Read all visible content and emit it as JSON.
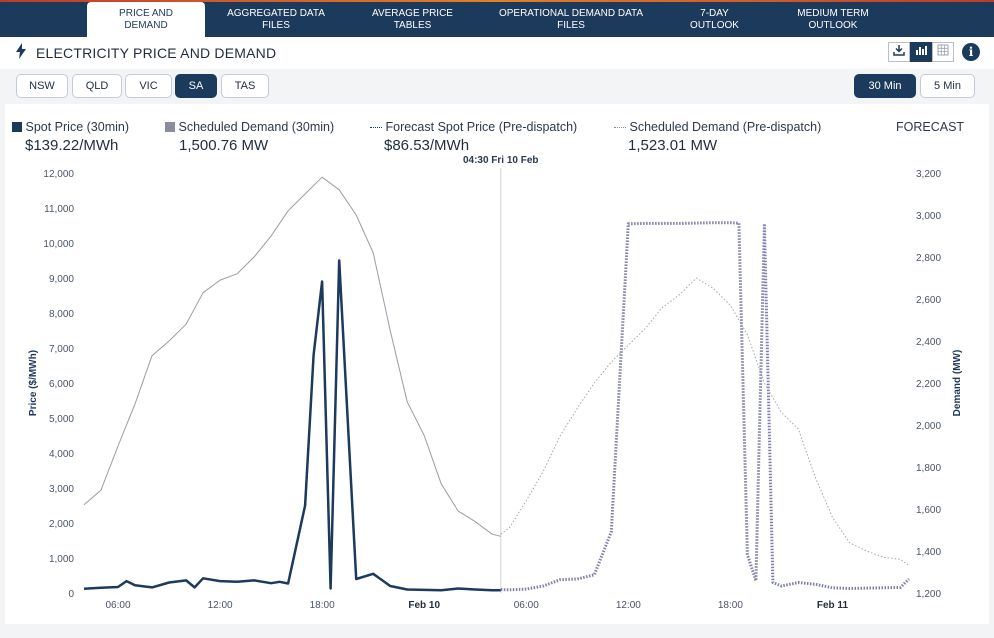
{
  "tabs": [
    {
      "label1": "PRICE AND",
      "label2": "DEMAND"
    },
    {
      "label1": "AGGREGATED DATA",
      "label2": "FILES"
    },
    {
      "label1": "AVERAGE PRICE",
      "label2": "TABLES"
    },
    {
      "label1": "OPERATIONAL DEMAND DATA",
      "label2": "FILES"
    },
    {
      "label1": "7-DAY",
      "label2": "OUTLOOK"
    },
    {
      "label1": "MEDIUM TERM",
      "label2": "OUTLOOK"
    }
  ],
  "header": {
    "title": "ELECTRICITY PRICE AND DEMAND",
    "info_label": "i"
  },
  "regions": [
    "NSW",
    "QLD",
    "VIC",
    "SA",
    "TAS"
  ],
  "selected_region": "SA",
  "intervals": [
    "30 Min",
    "5 Min"
  ],
  "selected_interval": "30 Min",
  "legend": {
    "spot_price": {
      "label": "Spot Price (30min)",
      "value": "$139.22/MWh",
      "color": "#1c3a5c"
    },
    "scheduled_demand": {
      "label": "Scheduled Demand (30min)",
      "value": "1,500.76 MW",
      "color": "#8a8d9a"
    },
    "forecast_price": {
      "label": "Forecast Spot Price (Pre-dispatch)",
      "value": "$86.53/MWh"
    },
    "forecast_demand": {
      "label": "Scheduled Demand (Pre-dispatch)",
      "value": "1,523.01 MW"
    },
    "forecast_label": "FORECAST"
  },
  "chart_data": {
    "type": "line",
    "marker_label": "04:30 Fri 10 Feb",
    "x_ticks": [
      "06:00",
      "12:00",
      "18:00",
      "Feb 10",
      "06:00",
      "12:00",
      "18:00",
      "Feb 11"
    ],
    "ylabel_left": "Price ($/MWh)",
    "ylabel_right": "Demand (MW)",
    "y_left_ticks": [
      "0",
      "1,000",
      "2,000",
      "3,000",
      "4,000",
      "5,000",
      "6,000",
      "7,000",
      "8,000",
      "9,000",
      "10,000",
      "11,000",
      "12,000"
    ],
    "y_right_ticks": [
      "1,200",
      "1,400",
      "1,600",
      "1,800",
      "2,000",
      "2,200",
      "2,400",
      "2,600",
      "2,800",
      "3,000",
      "3,200"
    ],
    "ylim_left": [
      0,
      12000
    ],
    "ylim_right": [
      1200,
      3200
    ],
    "x_hours_note": "hours relative to 00:00 Feb 9 (x axis spans 04:00 Feb 9 to 04:30 Feb 11)",
    "xlim": [
      4.0,
      52.5
    ],
    "series": [
      {
        "name": "Spot Price (30min)",
        "axis": "left",
        "x": [
          4.0,
          5.0,
          6.0,
          6.5,
          7.0,
          8.0,
          9.0,
          10.0,
          10.5,
          11.0,
          12.0,
          13.0,
          14.0,
          15.0,
          15.5,
          16.0,
          17.0,
          17.5,
          18.0,
          18.5,
          19.0,
          20.0,
          21.0,
          22.0,
          23.0,
          24.0,
          25.0,
          26.0,
          27.0,
          28.0,
          28.5
        ],
        "y": [
          120,
          150,
          170,
          340,
          220,
          160,
          300,
          360,
          160,
          420,
          340,
          320,
          360,
          280,
          320,
          270,
          2500,
          6800,
          8900,
          130,
          9500,
          400,
          550,
          200,
          100,
          90,
          80,
          130,
          100,
          80,
          80
        ]
      },
      {
        "name": "Scheduled Demand (30min)",
        "axis": "right",
        "x": [
          4.0,
          5.0,
          6.0,
          7.0,
          8.0,
          9.0,
          10.0,
          11.0,
          12.0,
          13.0,
          14.0,
          15.0,
          16.0,
          17.0,
          18.0,
          19.0,
          20.0,
          21.0,
          22.0,
          23.0,
          24.0,
          25.0,
          26.0,
          27.0,
          28.0,
          28.5
        ],
        "y": [
          1620,
          1690,
          1900,
          2100,
          2330,
          2400,
          2480,
          2630,
          2690,
          2720,
          2800,
          2900,
          3020,
          3100,
          3180,
          3120,
          3000,
          2820,
          2450,
          2110,
          1950,
          1720,
          1590,
          1540,
          1480,
          1470
        ]
      },
      {
        "name": "Forecast Spot Price (Pre-dispatch)",
        "axis": "left",
        "x": [
          28.5,
          29.0,
          30.0,
          31.0,
          32.0,
          33.0,
          34.0,
          35.0,
          36.0,
          37.0,
          38.0,
          39.0,
          40.0,
          41.0,
          42.0,
          42.5,
          43.0,
          43.5,
          44.0,
          44.5,
          45.0,
          46.0,
          47.0,
          48.0,
          49.0,
          50.0,
          51.0,
          52.0,
          52.5
        ],
        "y": [
          100,
          90,
          110,
          200,
          380,
          400,
          520,
          1750,
          10550,
          10560,
          10560,
          10560,
          10570,
          10580,
          10580,
          10570,
          1100,
          350,
          10550,
          300,
          200,
          300,
          250,
          150,
          130,
          140,
          150,
          160,
          400
        ]
      },
      {
        "name": "Scheduled Demand (Pre-dispatch)",
        "axis": "right",
        "x": [
          28.5,
          29.0,
          30.0,
          31.0,
          32.0,
          33.0,
          34.0,
          35.0,
          36.0,
          37.0,
          38.0,
          39.0,
          40.0,
          41.0,
          42.0,
          43.0,
          44.0,
          45.0,
          46.0,
          47.0,
          48.0,
          49.0,
          50.0,
          51.0,
          52.0,
          52.5
        ],
        "y": [
          1480,
          1510,
          1640,
          1780,
          1950,
          2080,
          2200,
          2300,
          2380,
          2460,
          2560,
          2620,
          2700,
          2650,
          2570,
          2430,
          2200,
          2060,
          1980,
          1750,
          1560,
          1440,
          1400,
          1370,
          1360,
          1330
        ]
      }
    ]
  }
}
